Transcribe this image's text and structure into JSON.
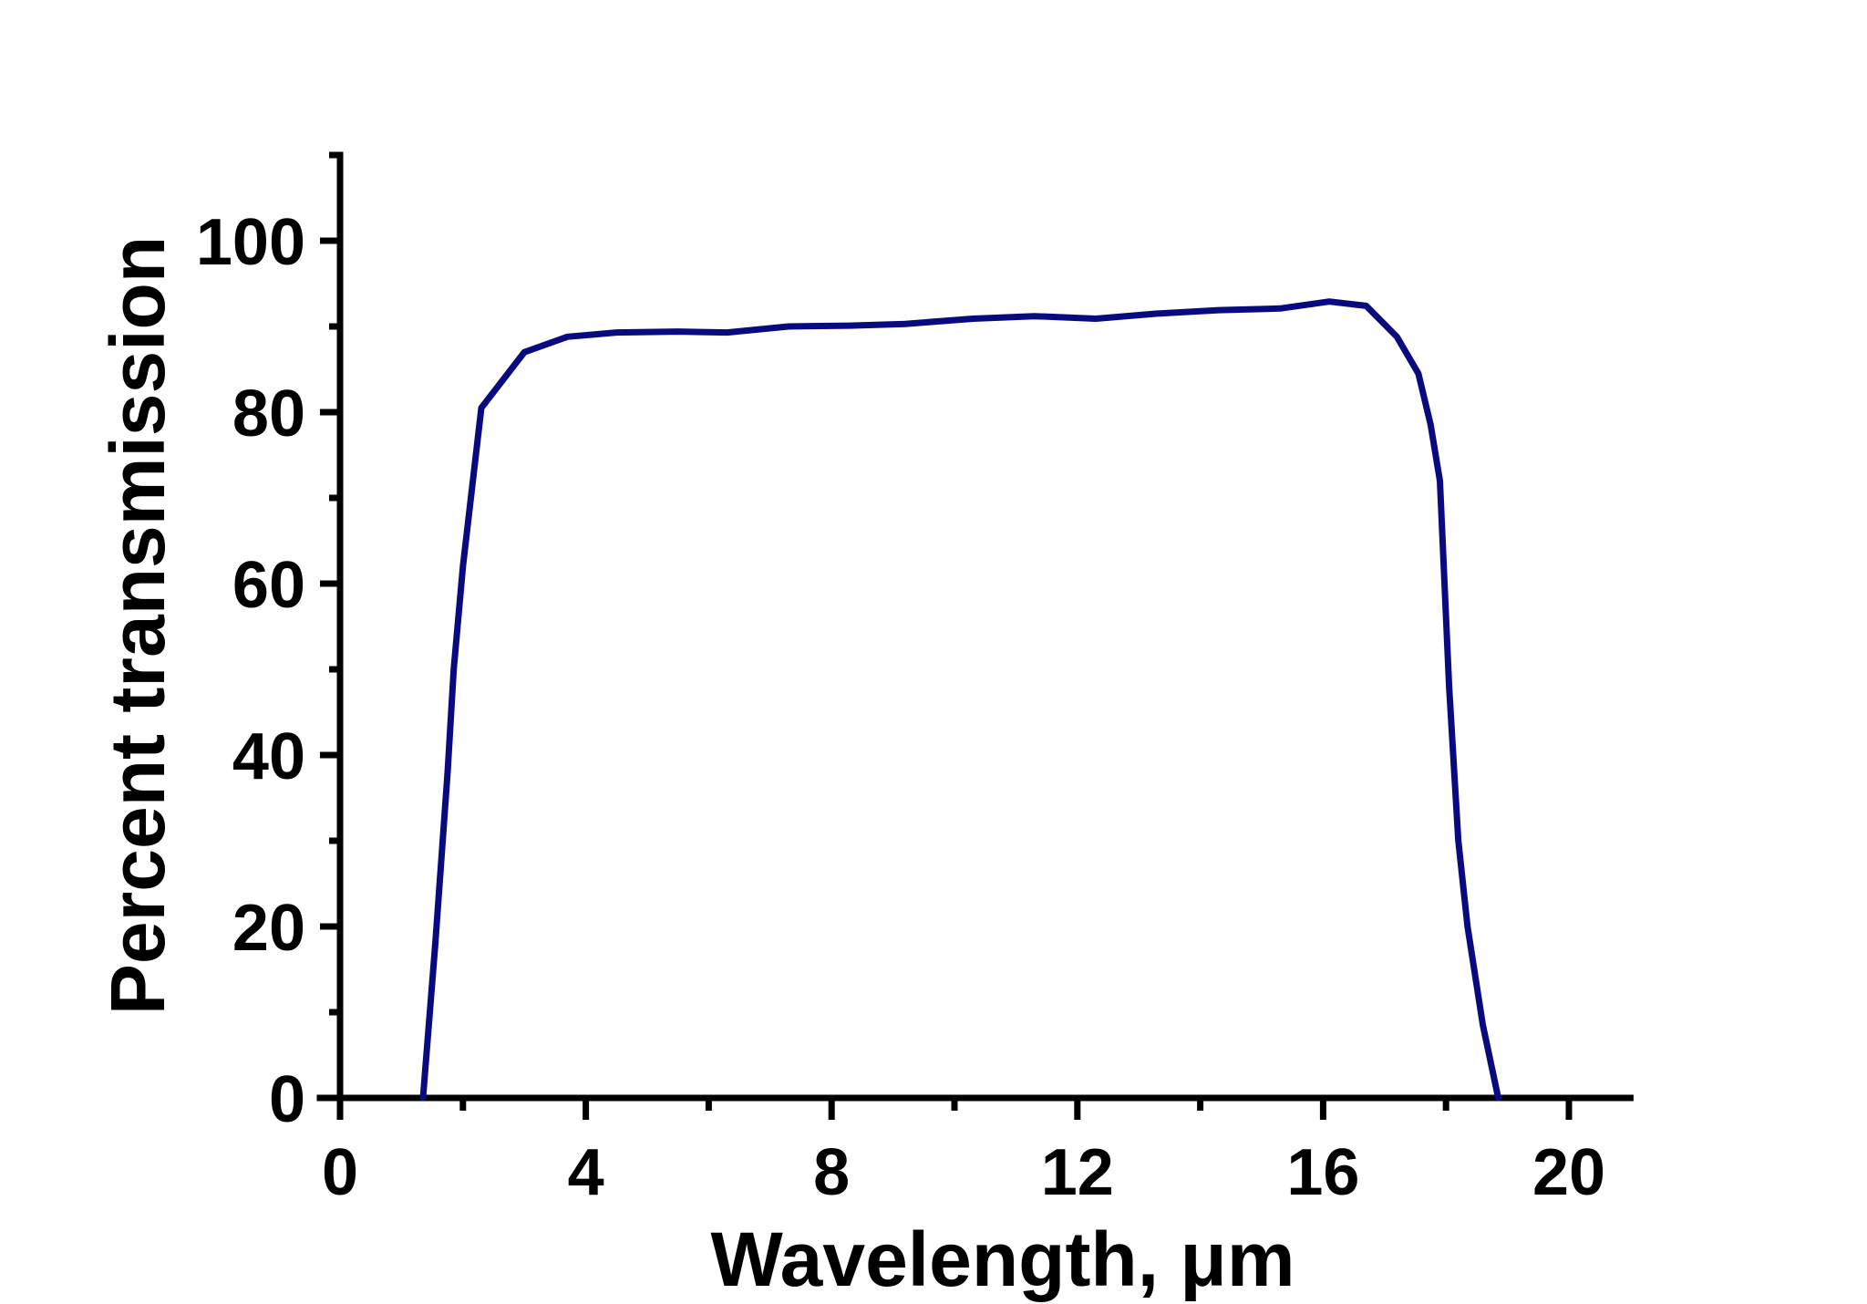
{
  "chart_data": {
    "type": "line",
    "title": "",
    "xlabel": "Wavelength, μm",
    "ylabel": "Percent transmission",
    "xlim": [
      0,
      21
    ],
    "ylim": [
      0,
      110
    ],
    "x_ticks": [
      0,
      4,
      8,
      12,
      16,
      20
    ],
    "x_minor_ticks": [
      2,
      6,
      10,
      14,
      18
    ],
    "y_ticks": [
      0,
      20,
      40,
      60,
      80,
      100
    ],
    "y_minor_ticks": [
      10,
      30,
      50,
      70,
      90,
      110
    ],
    "x_tick_labels": [
      "0",
      "4",
      "8",
      "12",
      "16",
      "20"
    ],
    "y_tick_labels": [
      "0",
      "20",
      "40",
      "60",
      "80",
      "100"
    ],
    "grid": false,
    "legend": "none",
    "series": [
      {
        "name": "transmission",
        "color": "#0a0a80",
        "x": [
          1.35,
          1.55,
          1.75,
          1.85,
          2.0,
          2.3,
          3.0,
          3.7,
          4.5,
          5.5,
          6.3,
          7.3,
          8.3,
          9.2,
          10.3,
          11.3,
          12.3,
          13.3,
          14.3,
          15.3,
          16.1,
          16.7,
          17.2,
          17.55,
          17.75,
          17.9,
          18.05,
          18.2,
          18.35,
          18.6,
          18.85
        ],
        "values": [
          0,
          18,
          38,
          50,
          62,
          80.5,
          87,
          88.8,
          89.3,
          89.4,
          89.3,
          90,
          90.1,
          90.3,
          90.9,
          91.2,
          90.9,
          91.5,
          91.9,
          92.1,
          92.9,
          92.4,
          88.8,
          84.5,
          78.5,
          72,
          48,
          30,
          20,
          8.5,
          0
        ]
      }
    ]
  }
}
